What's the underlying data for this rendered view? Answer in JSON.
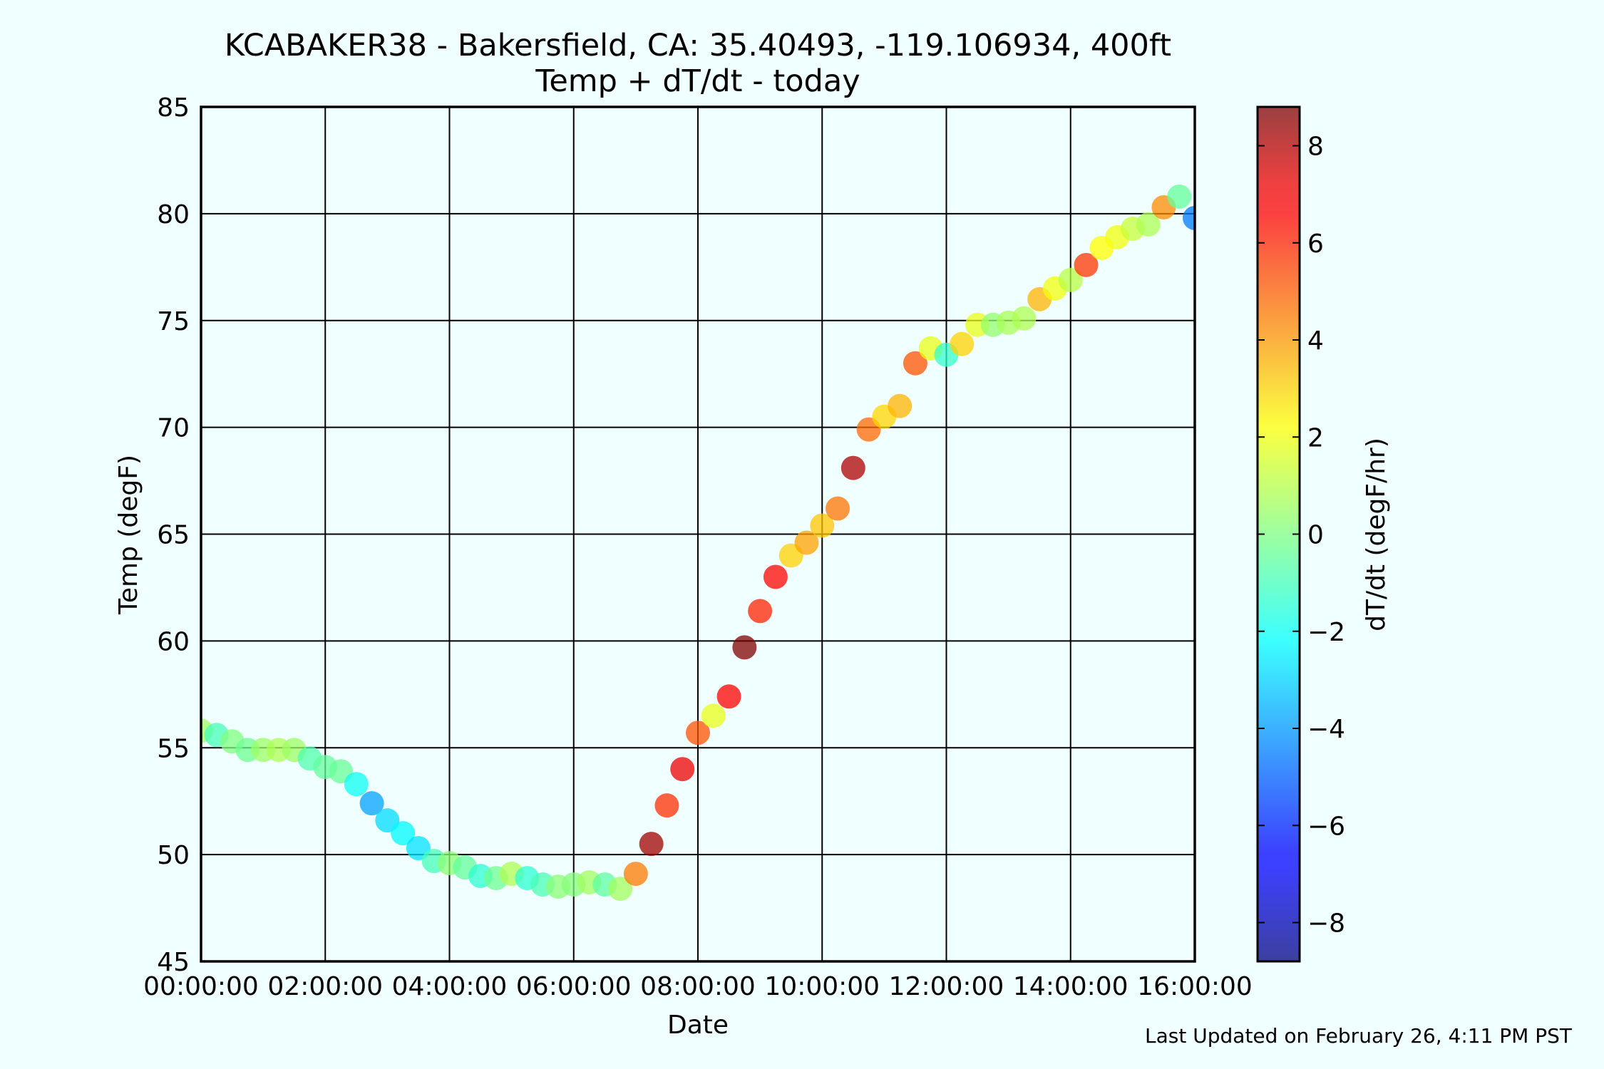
{
  "chart_data": {
    "type": "scatter",
    "title": "KCABAKER38 - Bakersfield, CA: 35.40493, -119.106934, 400ft",
    "subtitle": "Temp + dT/dt - today",
    "xlabel": "Date",
    "ylabel": "Temp (degF)",
    "colorbar_label": "dT/dt (degF/hr)",
    "footer": "Last Updated on February 26, 4:11 PM PST",
    "xlim": [
      "00:00:00",
      "16:00:00"
    ],
    "ylim": [
      45,
      85
    ],
    "clim": [
      -8.8,
      8.8
    ],
    "grid": true,
    "x_ticks": [
      "00:00:00",
      "02:00:00",
      "04:00:00",
      "06:00:00",
      "08:00:00",
      "10:00:00",
      "12:00:00",
      "14:00:00",
      "16:00:00"
    ],
    "y_ticks": [
      "45",
      "50",
      "55",
      "60",
      "65",
      "70",
      "75",
      "80",
      "85"
    ],
    "colorbar_ticks": [
      "8",
      "6",
      "4",
      "2",
      "0",
      "−2",
      "−4",
      "−6",
      "−8"
    ],
    "colorbar_tick_values": [
      8,
      6,
      4,
      2,
      0,
      -2,
      -4,
      -6,
      -8
    ],
    "colormap": "jet",
    "points": [
      {
        "time": "00:00",
        "temp": 55.8,
        "dtdt": 0.5
      },
      {
        "time": "00:15",
        "temp": 55.6,
        "dtdt": -1.0
      },
      {
        "time": "00:30",
        "temp": 55.3,
        "dtdt": 0.0
      },
      {
        "time": "00:45",
        "temp": 54.9,
        "dtdt": -0.3
      },
      {
        "time": "01:00",
        "temp": 54.9,
        "dtdt": 0.5
      },
      {
        "time": "01:15",
        "temp": 54.9,
        "dtdt": 0.8
      },
      {
        "time": "01:30",
        "temp": 54.9,
        "dtdt": 0.5
      },
      {
        "time": "01:45",
        "temp": 54.5,
        "dtdt": -0.8
      },
      {
        "time": "02:00",
        "temp": 54.1,
        "dtdt": -0.5
      },
      {
        "time": "02:15",
        "temp": 53.9,
        "dtdt": -0.4
      },
      {
        "time": "02:30",
        "temp": 53.3,
        "dtdt": -2.0
      },
      {
        "time": "02:45",
        "temp": 52.4,
        "dtdt": -3.8
      },
      {
        "time": "03:00",
        "temp": 51.6,
        "dtdt": -2.8
      },
      {
        "time": "03:15",
        "temp": 51.0,
        "dtdt": -2.3
      },
      {
        "time": "03:30",
        "temp": 50.3,
        "dtdt": -2.7
      },
      {
        "time": "03:45",
        "temp": 49.7,
        "dtdt": -1.0
      },
      {
        "time": "04:00",
        "temp": 49.6,
        "dtdt": 0.2
      },
      {
        "time": "04:15",
        "temp": 49.4,
        "dtdt": -0.5
      },
      {
        "time": "04:30",
        "temp": 49.0,
        "dtdt": -1.4
      },
      {
        "time": "04:45",
        "temp": 48.9,
        "dtdt": -0.3
      },
      {
        "time": "05:00",
        "temp": 49.1,
        "dtdt": 0.8
      },
      {
        "time": "05:15",
        "temp": 48.9,
        "dtdt": -1.4
      },
      {
        "time": "05:30",
        "temp": 48.6,
        "dtdt": -0.9
      },
      {
        "time": "05:45",
        "temp": 48.5,
        "dtdt": 0.2
      },
      {
        "time": "06:00",
        "temp": 48.6,
        "dtdt": 0.1
      },
      {
        "time": "06:15",
        "temp": 48.7,
        "dtdt": 0.6
      },
      {
        "time": "06:30",
        "temp": 48.6,
        "dtdt": -0.6
      },
      {
        "time": "06:45",
        "temp": 48.4,
        "dtdt": 0.6
      },
      {
        "time": "07:00",
        "temp": 49.1,
        "dtdt": 4.5
      },
      {
        "time": "07:15",
        "temp": 50.5,
        "dtdt": 8.2
      },
      {
        "time": "07:30",
        "temp": 52.3,
        "dtdt": 5.8
      },
      {
        "time": "07:45",
        "temp": 54.0,
        "dtdt": 6.9
      },
      {
        "time": "08:00",
        "temp": 55.7,
        "dtdt": 5.2
      },
      {
        "time": "08:15",
        "temp": 56.5,
        "dtdt": 1.8
      },
      {
        "time": "08:30",
        "temp": 57.4,
        "dtdt": 6.6
      },
      {
        "time": "08:45",
        "temp": 59.7,
        "dtdt": 8.9
      },
      {
        "time": "09:00",
        "temp": 61.4,
        "dtdt": 6.0
      },
      {
        "time": "09:15",
        "temp": 63.0,
        "dtdt": 6.5
      },
      {
        "time": "09:30",
        "temp": 64.0,
        "dtdt": 3.0
      },
      {
        "time": "09:45",
        "temp": 64.6,
        "dtdt": 3.8
      },
      {
        "time": "10:00",
        "temp": 65.4,
        "dtdt": 3.2
      },
      {
        "time": "10:15",
        "temp": 66.2,
        "dtdt": 4.6
      },
      {
        "time": "10:30",
        "temp": 68.1,
        "dtdt": 8.0
      },
      {
        "time": "10:45",
        "temp": 69.9,
        "dtdt": 4.8
      },
      {
        "time": "11:00",
        "temp": 70.5,
        "dtdt": 2.9
      },
      {
        "time": "11:15",
        "temp": 71.0,
        "dtdt": 3.5
      },
      {
        "time": "11:30",
        "temp": 73.0,
        "dtdt": 5.2
      },
      {
        "time": "11:45",
        "temp": 73.7,
        "dtdt": 1.8
      },
      {
        "time": "12:00",
        "temp": 73.4,
        "dtdt": -1.3
      },
      {
        "time": "12:15",
        "temp": 73.9,
        "dtdt": 3.0
      },
      {
        "time": "12:30",
        "temp": 74.8,
        "dtdt": 1.8
      },
      {
        "time": "12:45",
        "temp": 74.8,
        "dtdt": 0.3
      },
      {
        "time": "13:00",
        "temp": 74.9,
        "dtdt": 0.7
      },
      {
        "time": "13:15",
        "temp": 75.1,
        "dtdt": 0.8
      },
      {
        "time": "13:30",
        "temp": 76.0,
        "dtdt": 3.5
      },
      {
        "time": "13:45",
        "temp": 76.5,
        "dtdt": 2.0
      },
      {
        "time": "14:00",
        "temp": 76.9,
        "dtdt": 1.0
      },
      {
        "time": "14:15",
        "temp": 77.6,
        "dtdt": 5.7
      },
      {
        "time": "14:30",
        "temp": 78.4,
        "dtdt": 2.2
      },
      {
        "time": "14:45",
        "temp": 78.9,
        "dtdt": 2.0
      },
      {
        "time": "15:00",
        "temp": 79.3,
        "dtdt": 1.2
      },
      {
        "time": "15:15",
        "temp": 79.5,
        "dtdt": 0.8
      },
      {
        "time": "15:30",
        "temp": 80.3,
        "dtdt": 4.2
      },
      {
        "time": "15:45",
        "temp": 80.8,
        "dtdt": -0.5
      },
      {
        "time": "16:00",
        "temp": 79.8,
        "dtdt": -4.5
      }
    ]
  }
}
